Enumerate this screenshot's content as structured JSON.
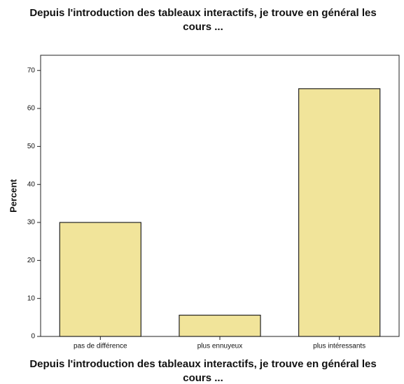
{
  "chart_data": {
    "type": "bar",
    "title": "Depuis l'introduction des tableaux interactifs, je trouve en général les cours ...",
    "x_label": "Depuis l'introduction des tableaux interactifs, je trouve en général les cours ...",
    "y_label": "Percent",
    "categories": [
      "pas de différence",
      "plus ennuyeux",
      "plus intéressants"
    ],
    "values": [
      30,
      5.6,
      65.2
    ],
    "color": "#f1e49a",
    "ylim": [
      0,
      74
    ],
    "yticks": [
      0,
      10,
      20,
      30,
      40,
      50,
      60,
      70
    ],
    "grid": false
  }
}
